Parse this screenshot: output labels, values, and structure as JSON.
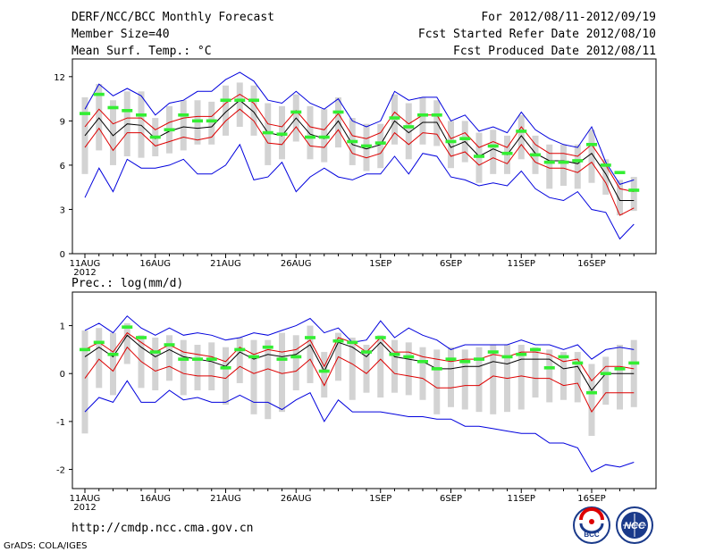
{
  "header": {
    "title": "DERF/NCC/BCC Monthly Forecast",
    "member_size": "Member Size=40",
    "variable": "Mean Surf. Temp.: °C",
    "period": "For 2012/08/11-2012/09/19",
    "started": "Fcst Started Refer Date 2012/08/10",
    "produced": "Fcst Produced Date 2012/08/11"
  },
  "footer": {
    "url": "http://cmdp.ncc.cma.gov.cn",
    "grads": "GrADS: COLA/IGES",
    "logo_bcc": "BCC",
    "logo_ncc": "NCC"
  },
  "colors": {
    "max_min": "#0000dd",
    "spread": "#dd0000",
    "mean": "#000000",
    "box": "#d3d3d3",
    "median": "#33ee33"
  },
  "chart_data": [
    {
      "type": "line",
      "title": "Mean Surf. Temp.: °C",
      "x": [
        "8/11",
        "8/12",
        "8/13",
        "8/14",
        "8/15",
        "8/16",
        "8/17",
        "8/18",
        "8/19",
        "8/20",
        "8/21",
        "8/22",
        "8/23",
        "8/24",
        "8/25",
        "8/26",
        "8/27",
        "8/28",
        "8/29",
        "8/30",
        "8/31",
        "9/1",
        "9/2",
        "9/3",
        "9/4",
        "9/5",
        "9/6",
        "9/7",
        "9/8",
        "9/9",
        "9/10",
        "9/11",
        "9/12",
        "9/13",
        "9/14",
        "9/15",
        "9/16",
        "9/17",
        "9/18",
        "9/19"
      ],
      "xticks": [
        "11AUG",
        "16AUG",
        "21AUG",
        "26AUG",
        "1SEP",
        "6SEP",
        "11SEP",
        "16SEP"
      ],
      "xtick_sub": "2012",
      "ylim": [
        0,
        13.2
      ],
      "yticks": [
        "0",
        "3",
        "6",
        "9",
        "12"
      ],
      "ytick_values": [
        0,
        3,
        6,
        9,
        12
      ],
      "series": [
        {
          "name": "max",
          "values": [
            9.8,
            11.5,
            10.7,
            11.2,
            10.7,
            9.4,
            10.2,
            10.4,
            11.0,
            11.0,
            11.8,
            12.3,
            11.7,
            10.4,
            10.2,
            11.0,
            10.2,
            9.8,
            10.5,
            9.0,
            8.6,
            9.0,
            11.0,
            10.4,
            10.6,
            10.6,
            9.0,
            9.4,
            8.3,
            8.6,
            8.2,
            9.6,
            8.4,
            7.8,
            7.4,
            7.2,
            8.6,
            6.2,
            4.7,
            5.0
          ]
        },
        {
          "name": "spread_upper",
          "values": [
            8.6,
            9.8,
            8.8,
            9.2,
            9.2,
            8.4,
            8.9,
            9.2,
            9.3,
            9.3,
            10.2,
            10.8,
            10.2,
            8.8,
            8.6,
            9.7,
            8.6,
            8.4,
            9.5,
            8.0,
            7.8,
            8.2,
            9.6,
            8.8,
            9.4,
            9.4,
            7.8,
            8.2,
            7.2,
            7.6,
            7.2,
            8.6,
            7.4,
            6.8,
            6.8,
            6.6,
            7.4,
            6.0,
            4.4,
            4.2
          ]
        },
        {
          "name": "mean",
          "values": [
            8.0,
            9.2,
            8.0,
            8.8,
            8.7,
            7.8,
            8.3,
            8.6,
            8.5,
            8.6,
            9.6,
            10.4,
            9.6,
            8.2,
            8.0,
            9.2,
            8.1,
            7.8,
            9.0,
            7.4,
            7.1,
            7.4,
            9.0,
            8.2,
            8.9,
            8.9,
            7.2,
            7.6,
            6.6,
            7.1,
            6.7,
            8.0,
            6.8,
            6.3,
            6.3,
            6.1,
            6.8,
            5.4,
            3.6,
            3.6
          ]
        },
        {
          "name": "spread_lower",
          "values": [
            7.2,
            8.5,
            7.0,
            8.2,
            8.2,
            7.3,
            7.6,
            7.9,
            7.7,
            7.9,
            9.0,
            9.8,
            9.0,
            7.5,
            7.4,
            8.6,
            7.3,
            7.2,
            8.4,
            6.8,
            6.5,
            6.8,
            8.2,
            7.4,
            8.2,
            8.1,
            6.6,
            6.9,
            6.0,
            6.5,
            6.1,
            7.4,
            6.2,
            5.8,
            5.8,
            5.5,
            6.2,
            4.8,
            2.6,
            3.1
          ]
        },
        {
          "name": "min",
          "values": [
            3.8,
            5.8,
            4.2,
            6.4,
            5.8,
            5.8,
            6.0,
            6.4,
            5.4,
            5.4,
            6.0,
            7.4,
            5.0,
            5.2,
            6.2,
            4.2,
            5.2,
            5.8,
            5.2,
            5.0,
            5.4,
            5.4,
            6.6,
            5.4,
            6.8,
            6.6,
            5.2,
            5.0,
            4.6,
            4.8,
            4.6,
            5.6,
            4.4,
            3.8,
            3.6,
            4.2,
            3.0,
            2.8,
            1.0,
            2.0
          ]
        },
        {
          "name": "box_top",
          "values": [
            10.6,
            11.5,
            10.4,
            11.0,
            11.0,
            9.2,
            10.0,
            10.4,
            10.4,
            10.3,
            11.4,
            11.6,
            11.4,
            10.2,
            10.0,
            10.8,
            10.0,
            9.8,
            10.6,
            9.2,
            8.8,
            8.8,
            10.8,
            10.2,
            10.6,
            10.4,
            9.0,
            9.0,
            8.2,
            8.4,
            8.0,
            9.4,
            8.0,
            7.4,
            7.4,
            7.4,
            8.4,
            6.4,
            5.0,
            5.2
          ]
        },
        {
          "name": "box_bottom",
          "values": [
            5.4,
            7.0,
            6.0,
            6.6,
            6.5,
            6.6,
            6.8,
            7.0,
            7.4,
            7.4,
            8.0,
            8.6,
            8.0,
            6.0,
            6.4,
            7.6,
            6.4,
            6.2,
            7.2,
            6.0,
            5.6,
            5.8,
            7.4,
            6.4,
            7.4,
            7.3,
            5.8,
            6.2,
            4.8,
            5.4,
            5.4,
            6.4,
            5.4,
            4.4,
            4.6,
            4.4,
            4.8,
            4.0,
            2.6,
            2.9
          ]
        },
        {
          "name": "median",
          "values": [
            9.5,
            10.8,
            9.9,
            9.7,
            9.4,
            7.9,
            8.4,
            9.4,
            9.0,
            9.0,
            10.4,
            10.4,
            10.4,
            8.2,
            8.1,
            9.6,
            7.9,
            7.9,
            9.6,
            7.6,
            7.3,
            7.5,
            9.2,
            8.6,
            9.4,
            9.4,
            7.6,
            7.8,
            6.6,
            7.3,
            6.8,
            8.3,
            6.7,
            6.2,
            6.2,
            6.3,
            7.4,
            6.0,
            5.5,
            4.3
          ]
        }
      ]
    },
    {
      "type": "line",
      "title": "Prec.: log(mm/d)",
      "x": [
        "8/11",
        "8/12",
        "8/13",
        "8/14",
        "8/15",
        "8/16",
        "8/17",
        "8/18",
        "8/19",
        "8/20",
        "8/21",
        "8/22",
        "8/23",
        "8/24",
        "8/25",
        "8/26",
        "8/27",
        "8/28",
        "8/29",
        "8/30",
        "8/31",
        "9/1",
        "9/2",
        "9/3",
        "9/4",
        "9/5",
        "9/6",
        "9/7",
        "9/8",
        "9/9",
        "9/10",
        "9/11",
        "9/12",
        "9/13",
        "9/14",
        "9/15",
        "9/16",
        "9/17",
        "9/18",
        "9/19"
      ],
      "xticks": [
        "11AUG",
        "16AUG",
        "21AUG",
        "26AUG",
        "1SEP",
        "6SEP",
        "11SEP",
        "16SEP"
      ],
      "xtick_sub": "2012",
      "ylim": [
        -2.4,
        1.7
      ],
      "yticks": [
        "1",
        "0",
        "-1",
        "-2"
      ],
      "ytick_values": [
        1,
        0,
        -1,
        -2
      ],
      "series": [
        {
          "name": "max",
          "values": [
            0.9,
            1.05,
            0.85,
            1.2,
            0.95,
            0.8,
            0.95,
            0.8,
            0.85,
            0.8,
            0.7,
            0.75,
            0.85,
            0.8,
            0.9,
            1.0,
            1.15,
            0.85,
            0.95,
            0.65,
            0.7,
            1.1,
            0.75,
            0.95,
            0.8,
            0.7,
            0.5,
            0.6,
            0.6,
            0.6,
            0.6,
            0.7,
            0.6,
            0.6,
            0.5,
            0.6,
            0.3,
            0.5,
            0.55,
            0.5
          ]
        },
        {
          "name": "spread_upper",
          "values": [
            0.5,
            0.65,
            0.45,
            0.85,
            0.65,
            0.45,
            0.6,
            0.45,
            0.4,
            0.35,
            0.25,
            0.55,
            0.4,
            0.5,
            0.45,
            0.5,
            0.7,
            0.15,
            0.75,
            0.65,
            0.45,
            0.75,
            0.45,
            0.45,
            0.35,
            0.3,
            0.25,
            0.3,
            0.3,
            0.4,
            0.35,
            0.45,
            0.45,
            0.4,
            0.25,
            0.3,
            -0.15,
            0.15,
            0.15,
            0.1
          ]
        },
        {
          "name": "mean",
          "values": [
            0.35,
            0.55,
            0.35,
            0.8,
            0.55,
            0.35,
            0.5,
            0.35,
            0.3,
            0.25,
            0.15,
            0.45,
            0.3,
            0.4,
            0.35,
            0.4,
            0.6,
            0.05,
            0.65,
            0.55,
            0.35,
            0.65,
            0.35,
            0.3,
            0.25,
            0.1,
            0.1,
            0.15,
            0.15,
            0.25,
            0.2,
            0.3,
            0.3,
            0.3,
            0.1,
            0.15,
            -0.35,
            0.0,
            0.0,
            0.0
          ]
        },
        {
          "name": "spread_lower",
          "values": [
            -0.1,
            0.3,
            0.05,
            0.55,
            0.25,
            0.05,
            0.15,
            0.0,
            -0.05,
            -0.05,
            -0.1,
            0.15,
            0.0,
            0.1,
            0.0,
            0.05,
            0.3,
            -0.25,
            0.35,
            0.2,
            0.0,
            0.3,
            0.0,
            -0.05,
            -0.1,
            -0.3,
            -0.3,
            -0.25,
            -0.25,
            -0.05,
            -0.1,
            -0.05,
            -0.1,
            -0.1,
            -0.25,
            -0.2,
            -0.8,
            -0.4,
            -0.4,
            -0.4
          ]
        },
        {
          "name": "min",
          "values": [
            -0.8,
            -0.5,
            -0.6,
            -0.15,
            -0.6,
            -0.6,
            -0.35,
            -0.55,
            -0.5,
            -0.6,
            -0.6,
            -0.45,
            -0.6,
            -0.6,
            -0.75,
            -0.55,
            -0.4,
            -1.0,
            -0.55,
            -0.8,
            -0.8,
            -0.8,
            -0.85,
            -0.9,
            -0.9,
            -0.95,
            -0.95,
            -1.1,
            -1.1,
            -1.15,
            -1.2,
            -1.25,
            -1.25,
            -1.45,
            -1.45,
            -1.55,
            -2.05,
            -1.9,
            -1.95,
            -1.85
          ]
        },
        {
          "name": "box_top",
          "values": [
            0.9,
            0.95,
            0.85,
            1.05,
            0.8,
            0.75,
            0.8,
            0.7,
            0.6,
            0.65,
            0.55,
            0.75,
            0.7,
            0.7,
            0.85,
            0.8,
            1.0,
            0.45,
            0.85,
            0.75,
            0.6,
            0.8,
            0.7,
            0.65,
            0.55,
            0.5,
            0.55,
            0.5,
            0.55,
            0.6,
            0.6,
            0.6,
            0.55,
            0.5,
            0.45,
            0.45,
            0.2,
            0.35,
            0.6,
            0.7
          ]
        },
        {
          "name": "box_bottom",
          "values": [
            -1.25,
            -0.3,
            -0.45,
            0.2,
            -0.3,
            -0.35,
            -0.15,
            -0.45,
            -0.35,
            -0.35,
            -0.65,
            -0.2,
            -0.85,
            -0.95,
            -0.8,
            -0.35,
            -0.2,
            -0.5,
            -0.15,
            -0.55,
            -0.4,
            -0.5,
            -0.4,
            -0.45,
            -0.55,
            -0.85,
            -0.7,
            -0.75,
            -0.8,
            -0.85,
            -0.8,
            -0.75,
            -0.5,
            -0.6,
            -0.55,
            -0.6,
            -1.3,
            -0.65,
            -0.75,
            -0.7
          ]
        },
        {
          "name": "median",
          "values": [
            0.5,
            0.65,
            0.4,
            0.97,
            0.75,
            0.45,
            0.6,
            0.3,
            0.3,
            0.3,
            0.12,
            0.5,
            0.35,
            0.55,
            0.3,
            0.35,
            0.75,
            0.05,
            0.68,
            0.65,
            0.45,
            0.75,
            0.4,
            0.35,
            0.25,
            0.1,
            0.3,
            0.25,
            0.3,
            0.45,
            0.35,
            0.4,
            0.5,
            0.12,
            0.35,
            0.22,
            -0.4,
            0.0,
            0.1,
            0.22
          ]
        }
      ]
    }
  ]
}
